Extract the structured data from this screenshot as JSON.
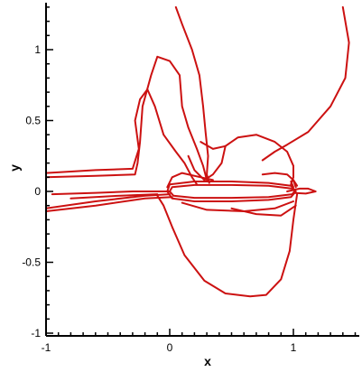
{
  "chart_data": {
    "type": "line",
    "xlabel": "x",
    "ylabel": "y",
    "xlim": [
      -1,
      1.55
    ],
    "ylim": [
      -1.05,
      1.3
    ],
    "xticks": [
      -1,
      0,
      1
    ],
    "xtick_labels": [
      "-1",
      "0",
      "1"
    ],
    "yticks": [
      -1,
      -0.5,
      0,
      0.5,
      1
    ],
    "ytick_labels": [
      "-1",
      "-0.5",
      "0",
      "0.5",
      "1"
    ],
    "grid": false,
    "line_color": "#cc1111",
    "series": [
      {
        "points": [
          [
            0.05,
            1.3
          ],
          [
            0.1,
            1.18
          ],
          [
            0.18,
            1.0
          ],
          [
            0.24,
            0.82
          ],
          [
            0.27,
            0.6
          ],
          [
            0.29,
            0.42
          ],
          [
            0.31,
            0.25
          ],
          [
            0.3,
            0.12
          ],
          [
            0.32,
            0.06
          ]
        ]
      },
      {
        "points": [
          [
            1.4,
            1.3
          ],
          [
            1.45,
            1.05
          ],
          [
            1.42,
            0.8
          ],
          [
            1.3,
            0.6
          ],
          [
            1.12,
            0.42
          ],
          [
            0.95,
            0.33
          ],
          [
            0.85,
            0.28
          ],
          [
            0.75,
            0.22
          ]
        ]
      },
      {
        "points": [
          [
            -1.0,
            0.1
          ],
          [
            -0.6,
            0.11
          ],
          [
            -0.28,
            0.12
          ],
          [
            -0.26,
            0.2
          ],
          [
            -0.24,
            0.35
          ],
          [
            -0.22,
            0.6
          ],
          [
            -0.15,
            0.82
          ],
          [
            -0.1,
            0.95
          ],
          [
            0.0,
            0.92
          ],
          [
            0.08,
            0.82
          ],
          [
            0.1,
            0.6
          ],
          [
            0.15,
            0.45
          ],
          [
            0.22,
            0.3
          ],
          [
            0.27,
            0.18
          ],
          [
            0.3,
            0.08
          ]
        ]
      },
      {
        "points": [
          [
            -1.0,
            0.13
          ],
          [
            -0.6,
            0.15
          ],
          [
            -0.3,
            0.16
          ],
          [
            -0.25,
            0.3
          ],
          [
            -0.28,
            0.5
          ],
          [
            -0.24,
            0.65
          ],
          [
            -0.18,
            0.72
          ],
          [
            -0.12,
            0.6
          ],
          [
            -0.05,
            0.4
          ],
          [
            0.05,
            0.28
          ],
          [
            0.12,
            0.2
          ],
          [
            0.18,
            0.1
          ],
          [
            0.22,
            0.05
          ]
        ]
      },
      {
        "points": [
          [
            0.45,
            0.32
          ],
          [
            0.55,
            0.38
          ],
          [
            0.7,
            0.4
          ],
          [
            0.85,
            0.35
          ],
          [
            0.95,
            0.28
          ],
          [
            1.0,
            0.18
          ],
          [
            1.0,
            0.1
          ],
          [
            0.98,
            0.05
          ]
        ]
      },
      {
        "points": [
          [
            0.25,
            0.35
          ],
          [
            0.35,
            0.3
          ],
          [
            0.45,
            0.32
          ]
        ]
      },
      {
        "points": [
          [
            0.15,
            0.25
          ],
          [
            0.2,
            0.15
          ],
          [
            0.28,
            0.08
          ],
          [
            0.35,
            0.12
          ],
          [
            0.42,
            0.2
          ],
          [
            0.45,
            0.32
          ]
        ]
      },
      {
        "points": [
          [
            -0.02,
            0.03
          ],
          [
            0.02,
            0.1
          ],
          [
            0.1,
            0.13
          ],
          [
            0.25,
            0.1
          ],
          [
            0.35,
            0.08
          ]
        ]
      },
      {
        "points": [
          [
            0.75,
            0.12
          ],
          [
            0.85,
            0.13
          ],
          [
            0.95,
            0.12
          ],
          [
            1.0,
            0.08
          ],
          [
            1.02,
            0.03
          ]
        ]
      },
      {
        "points": [
          [
            0.0,
            0.05
          ],
          [
            0.2,
            0.07
          ],
          [
            0.5,
            0.07
          ],
          [
            0.8,
            0.06
          ],
          [
            0.98,
            0.04
          ],
          [
            1.02,
            0.0
          ],
          [
            0.98,
            -0.04
          ],
          [
            0.8,
            -0.06
          ],
          [
            0.5,
            -0.07
          ],
          [
            0.2,
            -0.07
          ],
          [
            0.02,
            -0.05
          ],
          [
            -0.02,
            0.0
          ],
          [
            0.0,
            0.05
          ]
        ]
      },
      {
        "points": [
          [
            0.02,
            0.03
          ],
          [
            0.2,
            0.045
          ],
          [
            0.5,
            0.045
          ],
          [
            0.8,
            0.04
          ],
          [
            0.99,
            0.02
          ],
          [
            1.01,
            0.0
          ],
          [
            0.99,
            -0.02
          ],
          [
            0.8,
            -0.04
          ],
          [
            0.5,
            -0.045
          ],
          [
            0.2,
            -0.045
          ],
          [
            0.03,
            -0.03
          ],
          [
            0.0,
            0.0
          ],
          [
            0.02,
            0.03
          ]
        ]
      },
      {
        "points": [
          [
            -0.95,
            -0.02
          ],
          [
            -0.6,
            -0.01
          ],
          [
            -0.3,
            0.0
          ],
          [
            0.0,
            0.0
          ]
        ]
      },
      {
        "points": [
          [
            -1.0,
            -0.12
          ],
          [
            -0.6,
            -0.07
          ],
          [
            -0.2,
            -0.03
          ],
          [
            0.0,
            -0.02
          ]
        ]
      },
      {
        "points": [
          [
            -1.0,
            -0.14
          ],
          [
            -0.6,
            -0.1
          ],
          [
            -0.2,
            -0.05
          ],
          [
            0.02,
            -0.04
          ]
        ]
      },
      {
        "points": [
          [
            -0.8,
            -0.05
          ],
          [
            -0.4,
            -0.03
          ],
          [
            -0.1,
            -0.02
          ]
        ]
      },
      {
        "points": [
          [
            -0.1,
            -0.03
          ],
          [
            -0.05,
            -0.1
          ],
          [
            0.02,
            -0.25
          ],
          [
            0.12,
            -0.45
          ],
          [
            0.28,
            -0.63
          ],
          [
            0.45,
            -0.72
          ],
          [
            0.65,
            -0.74
          ],
          [
            0.78,
            -0.73
          ],
          [
            0.9,
            -0.62
          ],
          [
            0.97,
            -0.42
          ],
          [
            1.0,
            -0.2
          ],
          [
            1.02,
            -0.08
          ],
          [
            1.03,
            -0.02
          ]
        ]
      },
      {
        "points": [
          [
            0.1,
            -0.08
          ],
          [
            0.3,
            -0.13
          ],
          [
            0.6,
            -0.14
          ],
          [
            0.85,
            -0.12
          ],
          [
            1.0,
            -0.07
          ]
        ]
      },
      {
        "points": [
          [
            0.5,
            -0.12
          ],
          [
            0.7,
            -0.16
          ],
          [
            0.9,
            -0.17
          ],
          [
            1.02,
            -0.1
          ]
        ]
      },
      {
        "points": [
          [
            0.95,
            0.0
          ],
          [
            1.05,
            0.02
          ],
          [
            1.12,
            0.02
          ],
          [
            1.18,
            0.0
          ],
          [
            1.1,
            -0.015
          ],
          [
            1.0,
            -0.01
          ]
        ]
      },
      {
        "points": [
          [
            1.0,
            0.03
          ],
          [
            0.98,
            0.07
          ],
          [
            1.0,
            0.08
          ],
          [
            1.03,
            0.04
          ]
        ]
      }
    ]
  }
}
